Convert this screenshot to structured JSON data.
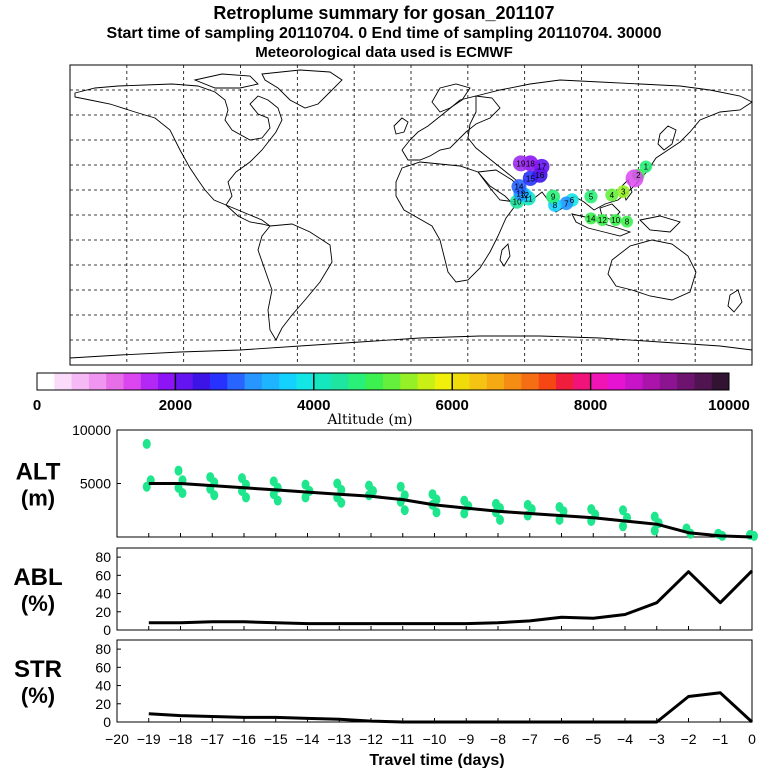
{
  "header": {
    "title": "Retroplume summary for gosan_201107",
    "subtitle": "Start time of sampling 20110704.    0     End time of sampling 20110704. 30000",
    "met_line": "Meteorological data used is ECMWF"
  },
  "colors": {
    "scale": [
      "#ffffff",
      "#fadcfa",
      "#f5b9f5",
      "#f096f0",
      "#e66ee6",
      "#dc46f0",
      "#b428f5",
      "#8c14f5",
      "#6414f0",
      "#3c14e6",
      "#2832ff",
      "#2864ff",
      "#2896ff",
      "#1eb4ff",
      "#14d2ff",
      "#14e6e6",
      "#14e6be",
      "#1ee6a0",
      "#28f078",
      "#3cf050",
      "#64f03c",
      "#96f028",
      "#c8f014",
      "#f0f00a",
      "#f0dc0a",
      "#f5c314",
      "#f5aa14",
      "#f58c14",
      "#f56e14",
      "#f54614",
      "#f01e3c",
      "#f0147a",
      "#f014b4",
      "#e614d2",
      "#c814c8",
      "#aa14aa",
      "#8c1490",
      "#6e1470",
      "#501450",
      "#321432"
    ],
    "plume_green": "#1ee68c",
    "line": "#000000"
  },
  "map": {
    "lon_range": [
      -180,
      180
    ],
    "lat_range": [
      -90,
      90
    ],
    "colorbar_ticks": [
      "0",
      "2000",
      "4000",
      "6000",
      "8000",
      "10000"
    ],
    "colorbar_label": "Altitude (m)",
    "plume_labels": [
      {
        "text": "19",
        "lon": 58,
        "lat": 31
      },
      {
        "text": "18",
        "lon": 63,
        "lat": 31
      },
      {
        "text": "17",
        "lon": 69,
        "lat": 29
      },
      {
        "text": "16",
        "lon": 68,
        "lat": 24
      },
      {
        "text": "15",
        "lon": 63,
        "lat": 22
      },
      {
        "text": "14",
        "lon": 57,
        "lat": 17
      },
      {
        "text": "13",
        "lon": 58,
        "lat": 13
      },
      {
        "text": "12",
        "lon": 60,
        "lat": 12
      },
      {
        "text": "11",
        "lon": 62,
        "lat": 10
      },
      {
        "text": "10",
        "lon": 56,
        "lat": 8
      },
      {
        "text": "9",
        "lon": 75,
        "lat": 11
      },
      {
        "text": "8",
        "lon": 76,
        "lat": 6
      },
      {
        "text": "7",
        "lon": 82,
        "lat": 7
      },
      {
        "text": "6",
        "lon": 85,
        "lat": 9
      },
      {
        "text": "5",
        "lon": 95,
        "lat": 11
      },
      {
        "text": "4",
        "lon": 106,
        "lat": 12
      },
      {
        "text": "3",
        "lon": 112,
        "lat": 14
      },
      {
        "text": "2",
        "lon": 120,
        "lat": 24
      },
      {
        "text": "1",
        "lon": 124,
        "lat": 29
      }
    ],
    "plume_end_labels": [
      {
        "text": "14",
        "lon": 95,
        "lat": -2
      },
      {
        "text": "12",
        "lon": 101,
        "lat": -3
      },
      {
        "text": "10",
        "lon": 108,
        "lat": -3
      },
      {
        "text": "8",
        "lon": 114,
        "lat": -4
      }
    ]
  },
  "chart_data": [
    {
      "type": "line",
      "title": "ALT (m)",
      "ylabel_main": "ALT",
      "ylabel_unit": "(m)",
      "xlabel": "Travel time (days)",
      "xlim": [
        -20,
        0
      ],
      "ylim": [
        0,
        10000
      ],
      "yticks": [
        "5000",
        "10000"
      ],
      "x": [
        -19,
        -18,
        -17,
        -16,
        -15,
        -14,
        -13,
        -12,
        -11,
        -10,
        -9,
        -8,
        -7,
        -6,
        -5,
        -4,
        -3,
        -2,
        -1,
        0
      ],
      "values": [
        5000,
        5000,
        4800,
        4600,
        4400,
        4200,
        4000,
        3800,
        3500,
        3000,
        2700,
        2400,
        2200,
        2000,
        1800,
        1500,
        1200,
        400,
        100,
        0
      ],
      "spread": [
        {
          "x": -19,
          "points": [
            8700,
            5300,
            4700
          ]
        },
        {
          "x": -18,
          "points": [
            6200,
            5300,
            4600,
            4100
          ]
        },
        {
          "x": -17,
          "points": [
            5600,
            5100,
            4500,
            3900
          ]
        },
        {
          "x": -16,
          "points": [
            5500,
            4900,
            4300,
            3700
          ]
        },
        {
          "x": -15,
          "points": [
            5200,
            4600,
            4000,
            3400
          ]
        },
        {
          "x": -14,
          "points": [
            4900,
            4300,
            3700
          ]
        },
        {
          "x": -13,
          "points": [
            5000,
            4400,
            3700,
            3200
          ]
        },
        {
          "x": -12,
          "points": [
            4800,
            4300,
            3900
          ]
        },
        {
          "x": -11,
          "points": [
            4700,
            3900,
            3300,
            2500
          ]
        },
        {
          "x": -10,
          "points": [
            4000,
            3500,
            3000,
            2300
          ]
        },
        {
          "x": -9,
          "points": [
            3400,
            2900,
            2200
          ]
        },
        {
          "x": -8,
          "points": [
            3100,
            2700,
            2300,
            1600
          ]
        },
        {
          "x": -7,
          "points": [
            3000,
            2600,
            2000
          ]
        },
        {
          "x": -6,
          "points": [
            2800,
            2400,
            1600
          ]
        },
        {
          "x": -5,
          "points": [
            2600,
            2100,
            1500
          ]
        },
        {
          "x": -4,
          "points": [
            2500,
            1800,
            1000
          ]
        },
        {
          "x": -3,
          "points": [
            1900,
            1300,
            600
          ]
        },
        {
          "x": -2,
          "points": [
            800,
            300
          ]
        },
        {
          "x": -1,
          "points": [
            300,
            100
          ]
        },
        {
          "x": 0,
          "points": [
            200,
            100
          ]
        }
      ]
    },
    {
      "type": "line",
      "title": "ABL (%)",
      "ylabel_main": "ABL",
      "ylabel_unit": "(%)",
      "xlim": [
        -20,
        0
      ],
      "ylim": [
        0,
        90
      ],
      "yticks": [
        "0",
        "20",
        "40",
        "60",
        "80"
      ],
      "x": [
        -19,
        -18,
        -17,
        -16,
        -15,
        -14,
        -13,
        -12,
        -11,
        -10,
        -9,
        -8,
        -7,
        -6,
        -5,
        -4,
        -3,
        -2,
        -1,
        0
      ],
      "values": [
        8,
        8,
        9,
        9,
        8,
        7,
        7,
        7,
        7,
        7,
        7,
        8,
        10,
        14,
        13,
        17,
        30,
        64,
        30,
        65
      ]
    },
    {
      "type": "line",
      "title": "STR (%)",
      "ylabel_main": "STR",
      "ylabel_unit": "(%)",
      "xlim": [
        -20,
        0
      ],
      "ylim": [
        0,
        90
      ],
      "yticks": [
        "0",
        "20",
        "40",
        "60",
        "80"
      ],
      "xticks": [
        "−20",
        "−19",
        "−18",
        "−17",
        "−16",
        "−15",
        "−14",
        "−13",
        "−12",
        "−11",
        "−10",
        "−9",
        "−8",
        "−7",
        "−6",
        "−5",
        "−4",
        "−3",
        "−2",
        "−1",
        "0"
      ],
      "x": [
        -19,
        -18,
        -17,
        -16,
        -15,
        -14,
        -13,
        -12,
        -11,
        -10,
        -9,
        -8,
        -7,
        -6,
        -5,
        -4,
        -3,
        -2,
        -1,
        0
      ],
      "values": [
        9,
        7,
        6,
        5,
        5,
        4,
        3,
        1,
        0,
        0,
        0,
        0,
        0,
        0,
        0,
        0,
        0,
        28,
        32,
        0
      ]
    }
  ]
}
